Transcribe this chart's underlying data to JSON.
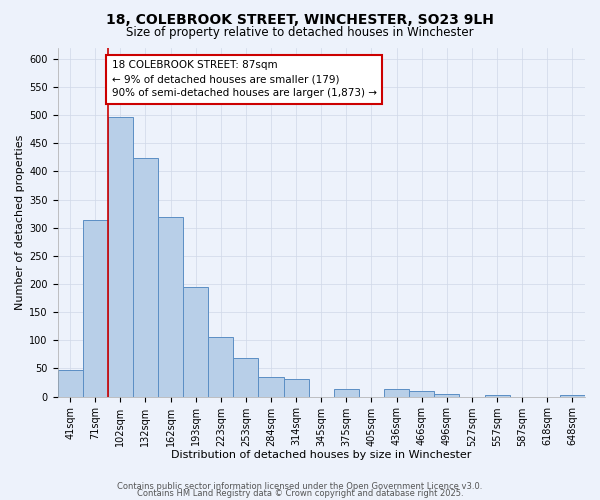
{
  "title_line1": "18, COLEBROOK STREET, WINCHESTER, SO23 9LH",
  "title_line2": "Size of property relative to detached houses in Winchester",
  "xlabel": "Distribution of detached houses by size in Winchester",
  "ylabel": "Number of detached properties",
  "bar_labels": [
    "41sqm",
    "71sqm",
    "102sqm",
    "132sqm",
    "162sqm",
    "193sqm",
    "223sqm",
    "253sqm",
    "284sqm",
    "314sqm",
    "345sqm",
    "375sqm",
    "405sqm",
    "436sqm",
    "466sqm",
    "496sqm",
    "527sqm",
    "557sqm",
    "587sqm",
    "618sqm",
    "648sqm"
  ],
  "bar_values": [
    47,
    313,
    497,
    423,
    319,
    195,
    105,
    69,
    35,
    32,
    0,
    14,
    0,
    14,
    10,
    5,
    0,
    2,
    0,
    0,
    2
  ],
  "bar_color": "#b8cfe8",
  "bar_edge_color": "#5b8ec4",
  "ylim": [
    0,
    620
  ],
  "yticks": [
    0,
    50,
    100,
    150,
    200,
    250,
    300,
    350,
    400,
    450,
    500,
    550,
    600
  ],
  "grid_color": "#d0d8e8",
  "bg_color": "#edf2fb",
  "annotation_line1": "18 COLEBROOK STREET: 87sqm",
  "annotation_line2": "← 9% of detached houses are smaller (179)",
  "annotation_line3": "90% of semi-detached houses are larger (1,873) →",
  "red_line_x": 1.5,
  "footer_line1": "Contains HM Land Registry data © Crown copyright and database right 2025.",
  "footer_line2": "Contains public sector information licensed under the Open Government Licence v3.0.",
  "title_fontsize": 10,
  "subtitle_fontsize": 8.5,
  "axis_label_fontsize": 8,
  "tick_fontsize": 7,
  "annotation_fontsize": 7.5,
  "footer_fontsize": 6
}
